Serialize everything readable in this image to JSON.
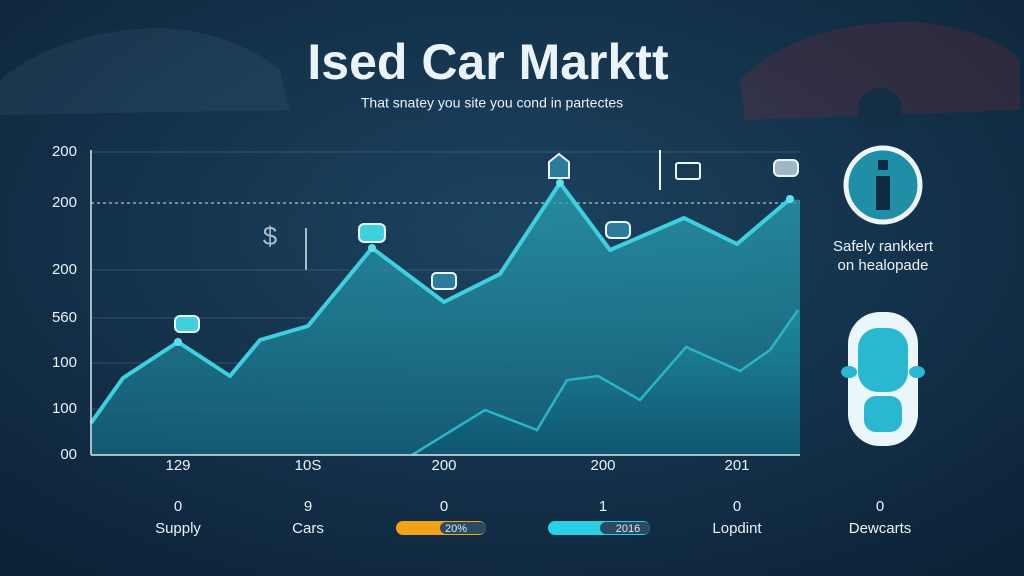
{
  "header": {
    "title": "Ised Car Marktt",
    "subtitle": "That snatey you site you cond in partectes"
  },
  "y_axis_labels": [
    "200",
    "200",
    "200",
    "560",
    "100",
    "100",
    "00"
  ],
  "columns": [
    {
      "top": "129",
      "middle": "0",
      "bottom": "Supply"
    },
    {
      "top": "10S",
      "middle": "9",
      "bottom": "Cars"
    },
    {
      "top": "200",
      "middle": "0",
      "bottom": "20%"
    },
    {
      "top": "200",
      "middle": "1",
      "bottom": "2016"
    },
    {
      "top": "201",
      "middle": "0",
      "bottom": "Lopdint"
    },
    {
      "middle": "0",
      "bottom": "Dewcarts"
    }
  ],
  "sidebar": {
    "line1": "Safely rankkert",
    "line2": "on healopade"
  }
}
